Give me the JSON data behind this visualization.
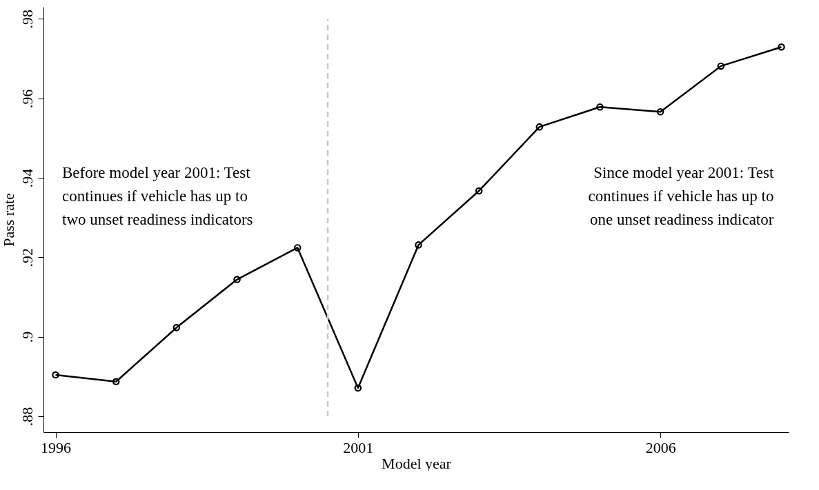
{
  "chart_data": {
    "type": "line",
    "xlabel": "Model year",
    "ylabel": "Pass rate",
    "x": [
      1996,
      1997,
      1998,
      1999,
      2000,
      2001,
      2002,
      2003,
      2004,
      2005,
      2006,
      2007,
      2008
    ],
    "series": [
      {
        "color": "#000000",
        "values": [
          0.8904,
          0.8887,
          0.9023,
          0.9144,
          0.9224,
          0.8871,
          0.9231,
          0.9367,
          0.9528,
          0.9578,
          0.9566,
          0.9681,
          0.9729
        ]
      }
    ],
    "xlim": [
      1995.8,
      2008.12
    ],
    "xticks": [
      1996,
      2001,
      2006
    ],
    "ylim": [
      0.876,
      0.983
    ],
    "yticks": [
      {
        "value": 0.88,
        "label": ".88"
      },
      {
        "value": 0.9,
        "label": ".9"
      },
      {
        "value": 0.92,
        "label": ".92"
      },
      {
        "value": 0.94,
        "label": ".94"
      },
      {
        "value": 0.96,
        "label": ".96"
      },
      {
        "value": 0.98,
        "label": ".98"
      }
    ],
    "ref_lines": [
      {
        "axis": "x",
        "value": 2000.5,
        "color": "#c8c8c8",
        "line_style": "dashed"
      }
    ],
    "annotations": [
      "Before model year 2001: Test\ncontinues if vehicle has up to\ntwo unset readiness indicators",
      "Since model year 2001: Test\ncontinues if vehicle has up to\none unset readiness indicator"
    ],
    "grid": false,
    "marker": "circle",
    "line_style": "solid"
  }
}
